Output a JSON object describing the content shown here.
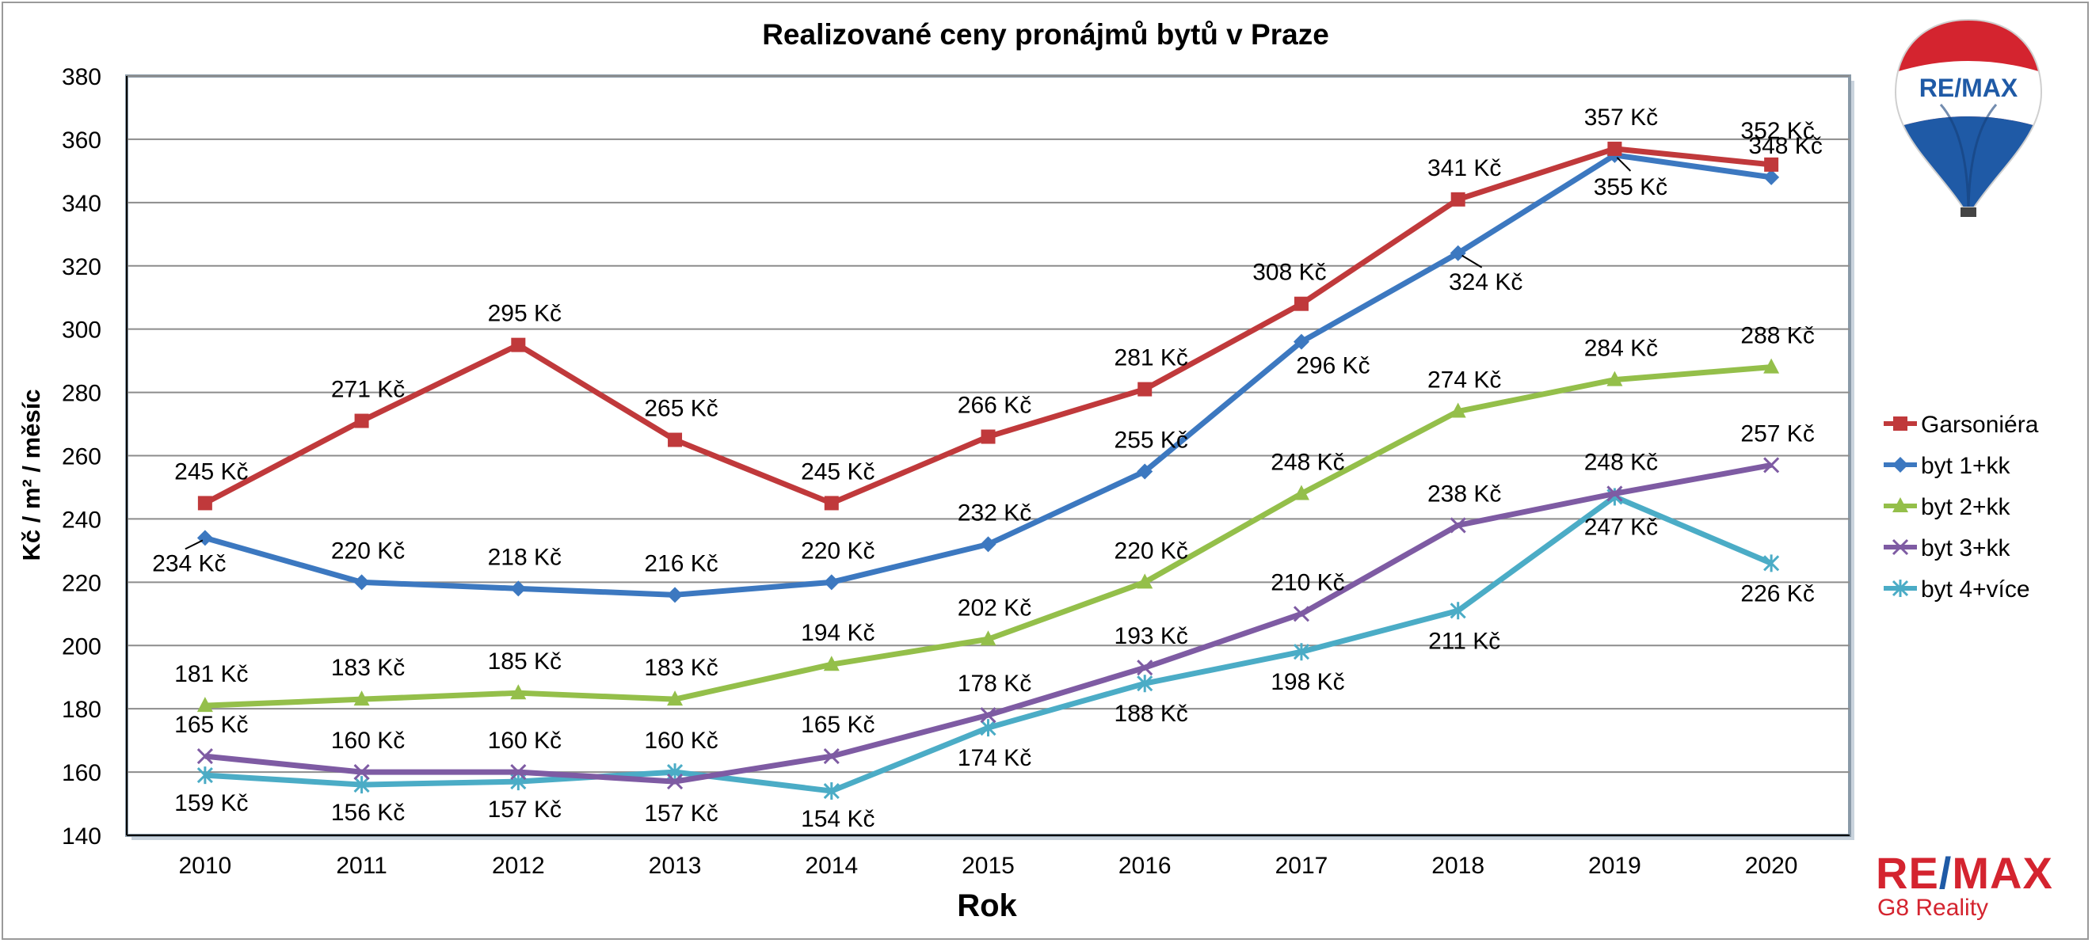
{
  "chart_data": {
    "type": "line",
    "title": "Realizované ceny pronájmů bytů v Praze",
    "xlabel": "Rok",
    "ylabel": "Kč / m² / měsíc",
    "ylim": [
      140,
      380
    ],
    "yticks": [
      "140",
      "160",
      "180",
      "200",
      "220",
      "240",
      "260",
      "280",
      "300",
      "320",
      "340",
      "360",
      "380"
    ],
    "categories": [
      "2010",
      "2011",
      "2012",
      "2013",
      "2014",
      "2015",
      "2016",
      "2017",
      "2018",
      "2019",
      "2020"
    ],
    "grid": true,
    "legend_position": "right",
    "series": [
      {
        "name": "Garsoniéra",
        "color": "#c0393b",
        "marker": "square",
        "values": [
          245,
          271,
          295,
          265,
          245,
          266,
          281,
          308,
          341,
          357,
          352
        ],
        "labels": [
          "245 Kč",
          "271 Kč",
          "295 Kč",
          "265 Kč",
          "245 Kč",
          "266 Kč",
          "281 Kč",
          "308 Kč",
          "341 Kč",
          "357 Kč",
          "352 Kč"
        ]
      },
      {
        "name": "byt 1+kk",
        "color": "#3c78c0",
        "marker": "diamond",
        "values": [
          234,
          220,
          218,
          216,
          220,
          232,
          255,
          296,
          324,
          355,
          348
        ],
        "labels": [
          "234 Kč",
          "220 Kč",
          "218 Kč",
          "216 Kč",
          "220 Kč",
          "232 Kč",
          "255 Kč",
          "296 Kč",
          "324 Kč",
          "355 Kč",
          "348 Kč"
        ]
      },
      {
        "name": "byt 2+kk",
        "color": "#94bf4a",
        "marker": "triangle",
        "values": [
          181,
          183,
          185,
          183,
          194,
          202,
          220,
          248,
          274,
          284,
          288
        ],
        "labels": [
          "181 Kč",
          "183 Kč",
          "185 Kč",
          "183 Kč",
          "194 Kč",
          "202 Kč",
          "220 Kč",
          "248 Kč",
          "274 Kč",
          "284 Kč",
          "288 Kč"
        ]
      },
      {
        "name": "byt 3+kk",
        "color": "#7e5ba3",
        "marker": "x",
        "values": [
          165,
          160,
          160,
          157,
          165,
          178,
          193,
          210,
          238,
          248,
          257
        ],
        "labels": [
          "165 Kč",
          "160 Kč",
          "160 Kč",
          "157 Kč",
          "165 Kč",
          "178 Kč",
          "193 Kč",
          "210 Kč",
          "238 Kč",
          "248 Kč",
          "257 Kč"
        ]
      },
      {
        "name": "byt 4+více",
        "color": "#4bacc6",
        "marker": "star",
        "values": [
          159,
          156,
          157,
          160,
          154,
          174,
          188,
          198,
          211,
          247,
          226
        ],
        "labels": [
          "159 Kč",
          "156 Kč",
          "157 Kč",
          "160 Kč",
          "154 Kč",
          "174 Kč",
          "188 Kč",
          "198 Kč",
          "211 Kč",
          "247 Kč",
          "226 Kč"
        ]
      }
    ]
  },
  "logo": {
    "balloon_text": "RE/MAX",
    "brand": "RE/MAX",
    "subtitle": "G8 Reality",
    "red": "#d4242f",
    "blue": "#1f5aa6"
  }
}
